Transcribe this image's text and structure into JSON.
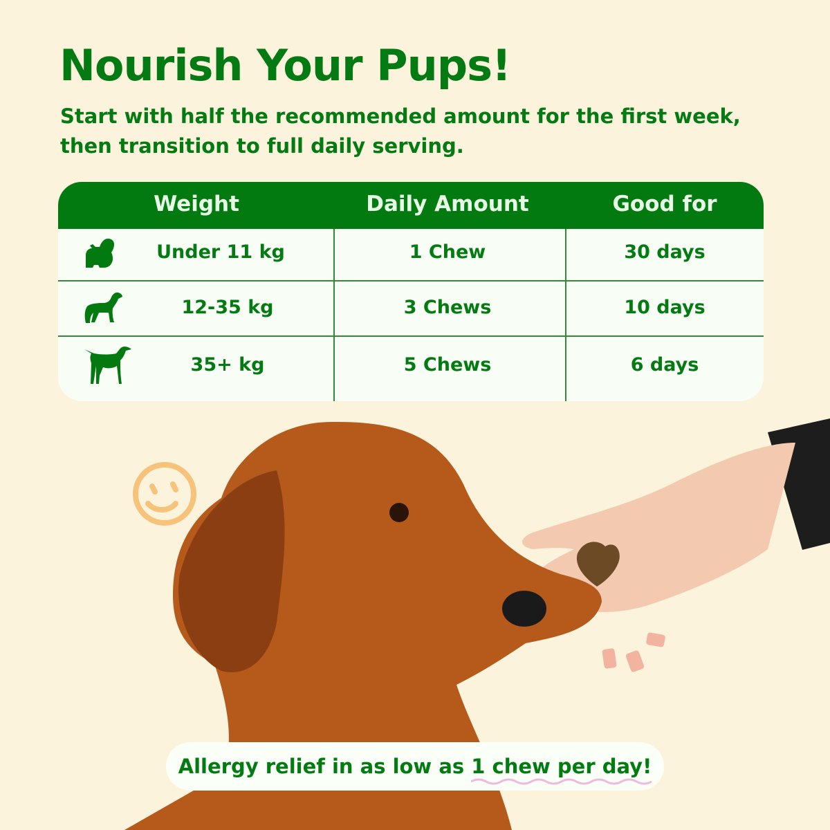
{
  "header": {
    "title": "Nourish Your Pups!",
    "subtitle": "Start with half the recommended amount for the first week, then transition to full daily serving."
  },
  "table": {
    "columns": [
      "Weight",
      "Daily Amount",
      "Good for"
    ],
    "rows": [
      {
        "icon": "small-dog-icon",
        "weight": "Under 11 kg",
        "amount": "1 Chew",
        "duration": "30 days"
      },
      {
        "icon": "medium-dog-icon",
        "weight": "12-35 kg",
        "amount": "3 Chews",
        "duration": "10 days"
      },
      {
        "icon": "large-dog-icon",
        "weight": "35+ kg",
        "amount": "5 Chews",
        "duration": "6 days"
      }
    ]
  },
  "banner": {
    "text": "Allergy relief in as low as ",
    "highlight": "1 chew per day!"
  },
  "colors": {
    "background": "#fbf3dc",
    "brand_green": "#027a10",
    "underline_pink": "#efb8dc"
  }
}
